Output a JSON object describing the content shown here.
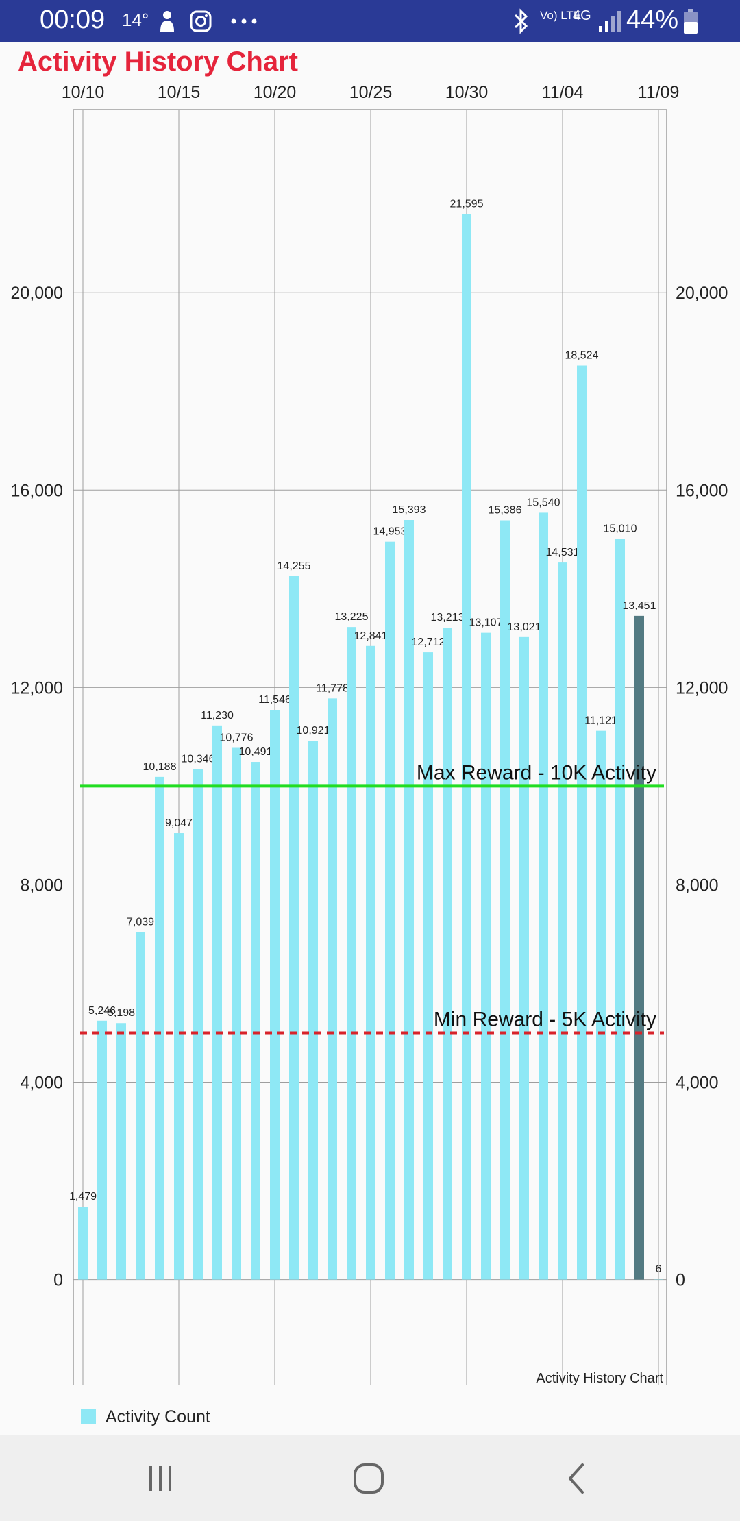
{
  "status_bar": {
    "time": "00:09",
    "temperature": "14°",
    "network_volte": "Vo) LTE",
    "network_type": "4G",
    "battery": "44%",
    "icons": [
      "drop-icon",
      "instagram-icon",
      "more-icon",
      "bluetooth-icon",
      "signal-icon",
      "battery-icon"
    ]
  },
  "app": {
    "title": "Activity History Chart"
  },
  "chart_data": {
    "type": "bar",
    "title": "Activity History Chart",
    "description_label": "Activity History Chart",
    "x_ticks": [
      "10/10",
      "10/15",
      "10/20",
      "10/25",
      "10/30",
      "11/04",
      "11/09"
    ],
    "y_ticks": [
      "0",
      "4,000",
      "8,000",
      "12,000",
      "16,000",
      "20,000"
    ],
    "ylim": [
      -2100,
      23700
    ],
    "categories": [
      "10/10",
      "10/11",
      "10/12",
      "10/13",
      "10/14",
      "10/15",
      "10/16",
      "10/17",
      "10/18",
      "10/19",
      "10/20",
      "10/21",
      "10/22",
      "10/23",
      "10/24",
      "10/25",
      "10/26",
      "10/27",
      "10/28",
      "10/29",
      "10/30",
      "10/31",
      "11/01",
      "11/02",
      "11/03",
      "11/04",
      "11/05",
      "11/06",
      "11/07",
      "11/08",
      "11/09"
    ],
    "series": [
      {
        "name": "Activity Count",
        "values": [
          1479,
          5246,
          5198,
          7039,
          10188,
          9047,
          10346,
          11230,
          10776,
          10491,
          11546,
          14255,
          10921,
          11778,
          13225,
          12841,
          14953,
          15393,
          12712,
          13213,
          21595,
          13107,
          15386,
          13021,
          15540,
          14531,
          18524,
          11121,
          15010,
          13451,
          6
        ],
        "labels": [
          "1,479",
          "5,246",
          "5,198",
          "7,039",
          "10,188",
          "9,047",
          "10,346",
          "11,230",
          "10,776",
          "10,491",
          "11,546",
          "14,255",
          "10,921",
          "11,778",
          "13,225",
          "12,841",
          "14,953",
          "15,393",
          "12,712",
          "13,213",
          "21,595",
          "13,107",
          "15,386",
          "13,021",
          "15,540",
          "14,531",
          "18,524",
          "11,121",
          "15,010",
          "13,451",
          "6"
        ]
      }
    ],
    "highlighted_index": 29,
    "reference_lines": [
      {
        "label": "Max Reward - 10K Activity",
        "value": 10000,
        "color": "#22dd22",
        "style": "solid"
      },
      {
        "label": "Min Reward - 5K Activity",
        "value": 5000,
        "color": "#d8232a",
        "style": "dashed"
      }
    ],
    "colors": {
      "bar": "#8ee8f5",
      "highlight": "#537a82",
      "grid": "#9e9e9e"
    },
    "grid": true,
    "legend": {
      "position": "bottom-left",
      "label": "Activity Count"
    }
  }
}
